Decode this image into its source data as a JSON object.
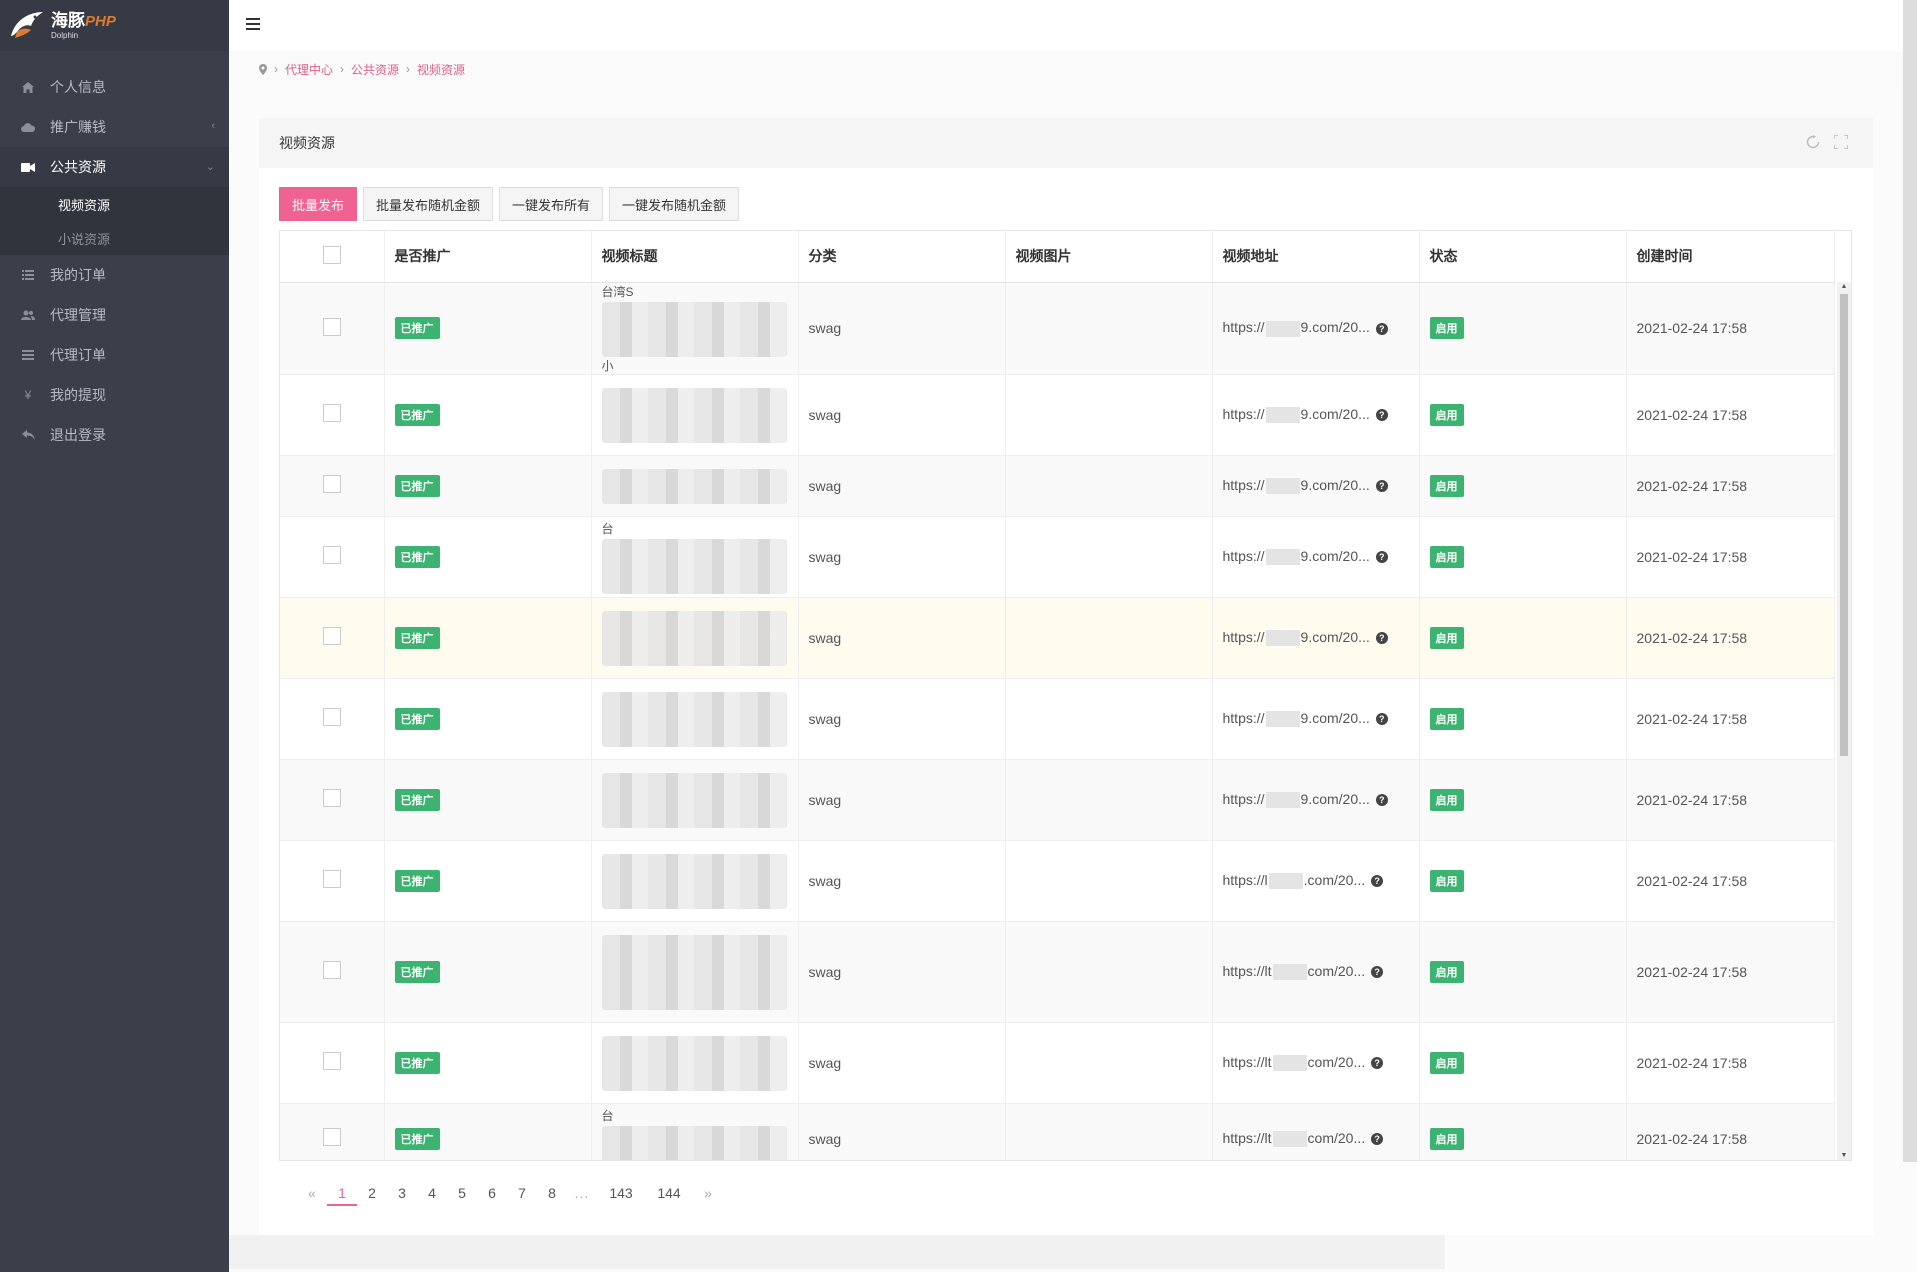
{
  "logo": {
    "name_cn": "海豚",
    "name_php": "PHP",
    "sub": "Dolphin"
  },
  "sidebar": {
    "items": [
      {
        "label": "个人信息",
        "icon": "home-icon"
      },
      {
        "label": "推广赚钱",
        "icon": "cloud-icon"
      },
      {
        "label": "公共资源",
        "icon": "video-camera-icon"
      },
      {
        "label": "我的订单",
        "icon": "list-icon"
      },
      {
        "label": "代理管理",
        "icon": "users-icon"
      },
      {
        "label": "代理订单",
        "icon": "bars-icon"
      },
      {
        "label": "我的提现",
        "icon": "yen-icon"
      },
      {
        "label": "退出登录",
        "icon": "reply-icon"
      }
    ],
    "submenu": [
      {
        "label": "视频资源"
      },
      {
        "label": "小说资源"
      }
    ]
  },
  "breadcrumb": [
    "代理中心",
    "公共资源",
    "视频资源"
  ],
  "card": {
    "title": "视频资源"
  },
  "toolbar": {
    "batch_publish": "批量发布",
    "batch_publish_random": "批量发布随机金额",
    "publish_all": "一键发布所有",
    "publish_all_random": "一键发布随机金额"
  },
  "table": {
    "headers": [
      "是否推广",
      "视频标题",
      "分类",
      "视频图片",
      "视频地址",
      "状态",
      "创建时间"
    ],
    "rows": [
      {
        "promoted": "已推广",
        "title_visible": "台湾S",
        "title_line2": "小",
        "category": "swag",
        "url_prefix": "https://",
        "url_suffix": "9.com/20...",
        "status": "启用",
        "created": "2021-02-24 17:58"
      },
      {
        "promoted": "已推广",
        "title_visible": "",
        "title_line2": "",
        "category": "swag",
        "url_prefix": "https://",
        "url_suffix": "9.com/20...",
        "status": "启用",
        "created": "2021-02-24 17:58"
      },
      {
        "promoted": "已推广",
        "title_visible": "",
        "title_line2": "",
        "category": "swag",
        "url_prefix": "https://",
        "url_suffix": "9.com/20...",
        "status": "启用",
        "created": "2021-02-24 17:58"
      },
      {
        "promoted": "已推广",
        "title_visible": "台",
        "title_line2": "",
        "category": "swag",
        "url_prefix": "https://",
        "url_suffix": "9.com/20...",
        "status": "启用",
        "created": "2021-02-24 17:58"
      },
      {
        "promoted": "已推广",
        "title_visible": "",
        "title_line2": "",
        "category": "swag",
        "url_prefix": "https://",
        "url_suffix": "9.com/20...",
        "status": "启用",
        "created": "2021-02-24 17:58"
      },
      {
        "promoted": "已推广",
        "title_visible": "",
        "title_line2": "",
        "category": "swag",
        "url_prefix": "https://",
        "url_suffix": "9.com/20...",
        "status": "启用",
        "created": "2021-02-24 17:58"
      },
      {
        "promoted": "已推广",
        "title_visible": "",
        "title_line2": "",
        "category": "swag",
        "url_prefix": "https://",
        "url_suffix": "9.com/20...",
        "status": "启用",
        "created": "2021-02-24 17:58"
      },
      {
        "promoted": "已推广",
        "title_visible": "",
        "title_line2": "",
        "category": "swag",
        "url_prefix": "https://l",
        "url_suffix": ".com/20...",
        "status": "启用",
        "created": "2021-02-24 17:58"
      },
      {
        "promoted": "已推广",
        "title_visible": "",
        "title_line2": "",
        "category": "swag",
        "url_prefix": "https://lt",
        "url_suffix": "com/20...",
        "status": "启用",
        "created": "2021-02-24 17:58"
      },
      {
        "promoted": "已推广",
        "title_visible": "",
        "title_line2": "",
        "category": "swag",
        "url_prefix": "https://lt",
        "url_suffix": "com/20...",
        "status": "启用",
        "created": "2021-02-24 17:58"
      },
      {
        "promoted": "已推广",
        "title_visible": "台",
        "title_line2": "",
        "category": "swag",
        "url_prefix": "https://lt",
        "url_suffix": "com/20...",
        "status": "启用",
        "created": "2021-02-24 17:58"
      }
    ]
  },
  "pagination": {
    "prev": "«",
    "pages": [
      "1",
      "2",
      "3",
      "4",
      "5",
      "6",
      "7",
      "8"
    ],
    "dots": "...",
    "tail": [
      "143",
      "144"
    ],
    "next": "»"
  },
  "colors": {
    "accent": "#f06292",
    "tag_green": "#3cb371",
    "sidebar_bg": "#3b3f4a"
  }
}
